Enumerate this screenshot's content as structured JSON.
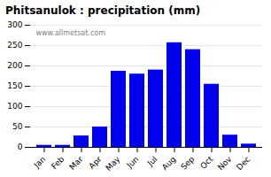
{
  "chart_data": {
    "type": "bar",
    "title": "Phitsanulok : precipitation (mm)",
    "categories": [
      "Jan",
      "Feb",
      "Mar",
      "Apr",
      "May",
      "Jun",
      "Jul",
      "Aug",
      "Sep",
      "Oct",
      "Nov",
      "Dec"
    ],
    "values": [
      5,
      5,
      28,
      50,
      187,
      180,
      190,
      257,
      240,
      155,
      30,
      8
    ],
    "color": "#0000EE",
    "ylim": [
      0,
      300
    ],
    "yticks": [
      0,
      50,
      100,
      150,
      200,
      250,
      300
    ],
    "grid": true,
    "annotations": [
      "www.allmetsat.com"
    ]
  }
}
